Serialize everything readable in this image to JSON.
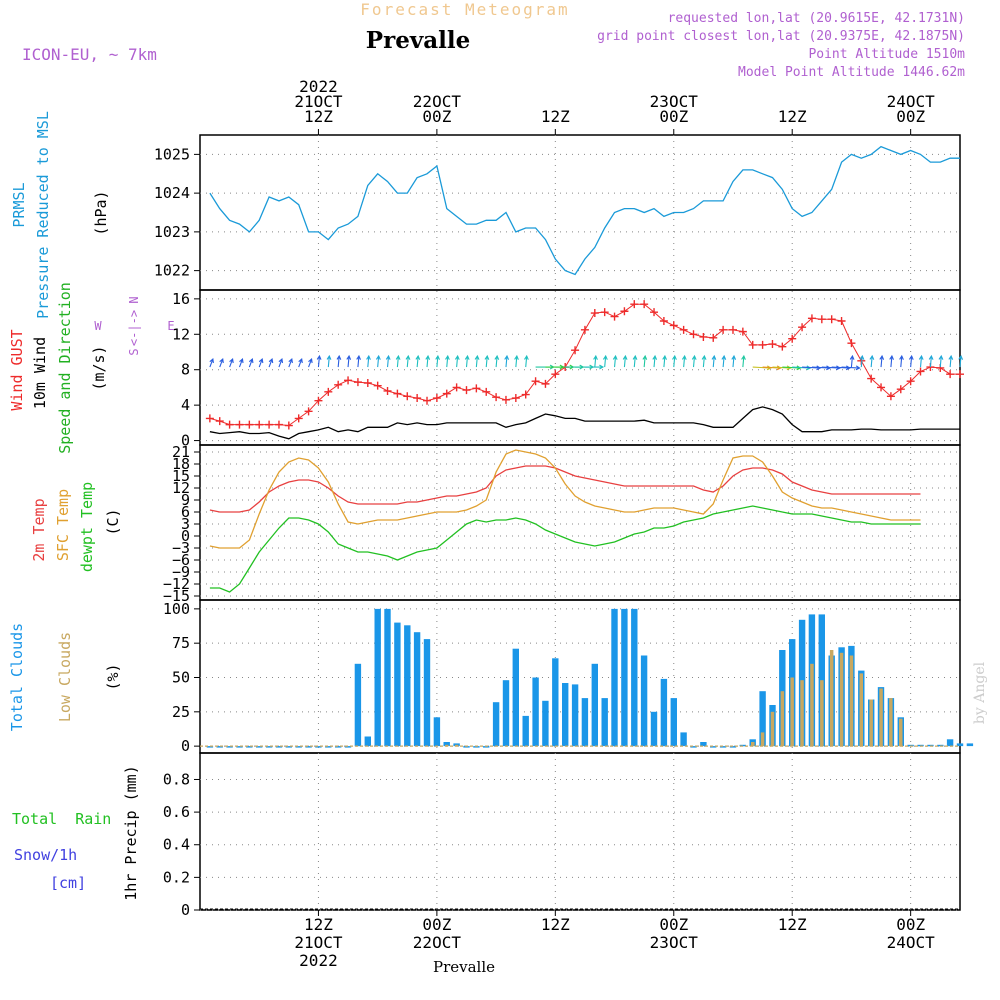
{
  "header": {
    "supertitle": "Forecast Meteogram",
    "title": "Prevalle",
    "model": "ICON-EU, ~ 7km",
    "requested": "requested lon,lat (20.9615E, 42.1731N)",
    "gridpoint": "grid point closest lon,lat (20.9375E, 42.1875N)",
    "altitude": "Point Altitude 1510m",
    "model_altitude": "Model Point Altitude 1446.62m",
    "footer": "Prevalle",
    "watermark": "by Angel"
  },
  "colors": {
    "pressure": "#1a9ad8",
    "gust": "#ee2b2b",
    "wind": "#000000",
    "dir": "#22b022",
    "t2m": "#e84040",
    "sfc": "#e0a030",
    "dew": "#22c022",
    "total_clouds": "#1a96e8",
    "low_clouds": "#c8a860",
    "model": "#b060d0",
    "snow": "#4040e0",
    "rain": "#22c022",
    "super": "#f0c890"
  },
  "time_axis": {
    "top_ticks": [
      {
        "h": 12,
        "line1": "2022",
        "line2": "21OCT",
        "line3": "12Z"
      },
      {
        "h": 24,
        "line1": "",
        "line2": "22OCT",
        "line3": "00Z"
      },
      {
        "h": 36,
        "line1": "",
        "line2": "",
        "line3": "12Z"
      },
      {
        "h": 48,
        "line1": "",
        "line2": "23OCT",
        "line3": "00Z"
      },
      {
        "h": 60,
        "line1": "",
        "line2": "",
        "line3": "12Z"
      },
      {
        "h": 72,
        "line1": "",
        "line2": "24OCT",
        "line3": "00Z"
      }
    ],
    "bottom_ticks": [
      {
        "h": 12,
        "line1": "12Z",
        "line2": "21OCT",
        "line3": "2022"
      },
      {
        "h": 24,
        "line1": "00Z",
        "line2": "22OCT",
        "line3": ""
      },
      {
        "h": 36,
        "line1": "12Z",
        "line2": "",
        "line3": ""
      },
      {
        "h": 48,
        "line1": "00Z",
        "line2": "23OCT",
        "line3": ""
      },
      {
        "h": 60,
        "line1": "12Z",
        "line2": "",
        "line3": ""
      },
      {
        "h": 72,
        "line1": "00Z",
        "line2": "24OCT",
        "line3": ""
      }
    ]
  },
  "panels": {
    "pressure": {
      "label1": "PRMSL",
      "label2": "Pressure Reduced to MSL",
      "unit": "(hPa)"
    },
    "wind": {
      "label_gust": "Wind GUST",
      "label_wind": "10m Wind",
      "label_dir": "Speed and Direction",
      "unit": "(m/s)",
      "compass_n": "N",
      "compass_s": "S",
      "compass_w": "W",
      "compass_e": "E",
      "compass_mid": "<-|->"
    },
    "temp": {
      "label_t2m": "2m Temp",
      "label_sfc": "SFC Temp",
      "label_dew": "dewpt Temp",
      "unit": "(C)"
    },
    "clouds": {
      "label_total": "Total Clouds",
      "label_low": "Low Clouds",
      "unit": "(%)"
    },
    "precip": {
      "label_rain": "Total  Rain",
      "label_snow": "Snow/1h",
      "label_cm": "[cm]",
      "label_axis": "1hr Precip (mm)"
    }
  },
  "chart_data": [
    {
      "type": "line",
      "name": "pressure",
      "x_start_hour": 1,
      "x_end_hour": 77,
      "ylim": [
        1021.5,
        1025.5
      ],
      "yticks": [
        1022,
        1023,
        1024,
        1025
      ],
      "series": [
        {
          "name": "PRMSL",
          "values": [
            1024.0,
            1023.6,
            1023.3,
            1023.2,
            1023.0,
            1023.3,
            1023.9,
            1023.8,
            1023.9,
            1023.7,
            1023.0,
            1023.0,
            1022.8,
            1023.1,
            1023.2,
            1023.4,
            1024.2,
            1024.5,
            1024.3,
            1024.0,
            1024.0,
            1024.4,
            1024.5,
            1024.7,
            1023.6,
            1023.4,
            1023.2,
            1023.2,
            1023.3,
            1023.3,
            1023.5,
            1023.0,
            1023.1,
            1023.1,
            1022.8,
            1022.3,
            1022.0,
            1021.9,
            1022.3,
            1022.6,
            1023.1,
            1023.5,
            1023.6,
            1023.6,
            1023.5,
            1023.6,
            1023.4,
            1023.5,
            1023.5,
            1023.6,
            1023.8,
            1023.8,
            1023.8,
            1024.3,
            1024.6,
            1024.6,
            1024.5,
            1024.4,
            1024.1,
            1023.6,
            1023.4,
            1023.5,
            1023.8,
            1024.1,
            1024.8,
            1025.0,
            1024.9,
            1025.0,
            1025.2,
            1025.1,
            1025.0,
            1025.1,
            1025.0,
            1024.8,
            1024.8,
            1024.9,
            1024.9
          ]
        }
      ]
    },
    {
      "type": "line",
      "name": "wind",
      "x_start_hour": 1,
      "x_end_hour": 77,
      "ylim": [
        -0.5,
        17
      ],
      "yticks": [
        0,
        4,
        8,
        12,
        16
      ],
      "series": [
        {
          "name": "Wind GUST",
          "values": [
            2.5,
            2.2,
            1.8,
            1.8,
            1.8,
            1.8,
            1.8,
            1.8,
            1.7,
            2.5,
            3.3,
            4.5,
            5.5,
            6.3,
            6.8,
            6.6,
            6.5,
            6.2,
            5.6,
            5.3,
            5.0,
            4.8,
            4.5,
            4.8,
            5.3,
            6.0,
            5.7,
            5.9,
            5.5,
            4.9,
            4.6,
            4.8,
            5.2,
            6.7,
            6.4,
            7.5,
            8.3,
            10.2,
            12.5,
            14.4,
            14.5,
            14.0,
            14.6,
            15.4,
            15.4,
            14.5,
            13.5,
            13.0,
            12.5,
            12.0,
            11.7,
            11.6,
            12.5,
            12.5,
            12.3,
            10.8,
            10.8,
            10.9,
            10.6,
            11.5,
            12.8,
            13.8,
            13.7,
            13.7,
            13.5,
            11.0,
            9.0,
            7.0,
            6.0,
            5.0,
            5.8,
            6.7,
            7.8,
            8.3,
            8.2,
            7.5,
            7.5
          ]
        },
        {
          "name": "10m Wind",
          "values": [
            1.0,
            0.8,
            0.9,
            1.0,
            0.8,
            0.8,
            0.9,
            0.5,
            0.2,
            0.8,
            1.0,
            1.2,
            1.5,
            1.0,
            1.2,
            1.0,
            1.5,
            1.5,
            1.5,
            2.0,
            1.8,
            2.0,
            1.8,
            1.8,
            2.0,
            2.0,
            2.0,
            2.0,
            2.0,
            2.0,
            1.5,
            1.8,
            2.0,
            2.5,
            3.0,
            2.8,
            2.5,
            2.5,
            2.2,
            2.2,
            2.2,
            2.2,
            2.2,
            2.2,
            2.3,
            2.0,
            2.0,
            2.0,
            2.0,
            2.0,
            1.8,
            1.5,
            1.5,
            1.5,
            2.5,
            3.5,
            3.8,
            3.5,
            3.0,
            1.8,
            1.0,
            1.0,
            1.0,
            1.2,
            1.2,
            1.2,
            1.3,
            1.3,
            1.2,
            1.2,
            1.2,
            1.2,
            1.3,
            1.3,
            1.3,
            1.3,
            1.3
          ]
        }
      ]
    },
    {
      "type": "line",
      "name": "temperature",
      "x_start_hour": 1,
      "x_end_hour": 77,
      "ylim": [
        -16,
        22
      ],
      "yticks": [
        -15,
        -12,
        -9,
        -6,
        -3,
        0,
        3,
        6,
        9,
        12,
        15,
        18,
        21
      ],
      "series": [
        {
          "name": "2m Temp",
          "values": [
            6.5,
            6.0,
            6.0,
            6.0,
            6.5,
            8.5,
            11.0,
            12.5,
            13.5,
            14.0,
            14.0,
            13.5,
            12.0,
            10.0,
            8.5,
            8.0,
            8.0,
            8.0,
            8.0,
            8.0,
            8.5,
            8.5,
            9.0,
            9.5,
            10.0,
            10.0,
            10.5,
            11.0,
            12.0,
            15.0,
            16.5,
            17.0,
            17.5,
            17.5,
            17.5,
            17.0,
            16.0,
            15.0,
            14.5,
            14.0,
            13.5,
            13.0,
            12.5,
            12.5,
            12.5,
            12.5,
            12.5,
            12.5,
            12.5,
            12.5,
            11.5,
            11.0,
            12.5,
            15.0,
            16.5,
            17.0,
            17.0,
            16.5,
            15.5,
            13.5,
            12.5,
            11.5,
            11.0,
            10.5,
            10.5,
            10.5,
            10.5,
            10.5,
            10.5,
            10.5,
            10.5,
            10.5,
            10.5
          ]
        },
        {
          "name": "SFC Temp",
          "values": [
            -2.5,
            -3.0,
            -3.0,
            -3.0,
            -1.0,
            5.5,
            11.5,
            16.0,
            18.5,
            19.5,
            19.0,
            17.0,
            13.5,
            8.0,
            3.5,
            3.0,
            3.5,
            4.0,
            4.0,
            4.0,
            4.5,
            5.0,
            5.5,
            6.0,
            6.0,
            6.0,
            6.5,
            7.5,
            9.0,
            16.0,
            20.5,
            21.5,
            21.0,
            20.5,
            19.5,
            17.0,
            13.0,
            10.0,
            8.5,
            7.5,
            7.0,
            6.5,
            6.0,
            6.0,
            6.5,
            7.0,
            7.0,
            7.0,
            6.5,
            6.0,
            5.5,
            8.0,
            14.0,
            19.5,
            20.0,
            20.0,
            18.5,
            15.0,
            11.0,
            9.5,
            8.5,
            7.5,
            7.0,
            7.0,
            6.5,
            6.0,
            5.5,
            5.0,
            4.5,
            4.0,
            4.0,
            4.0,
            4.0
          ]
        },
        {
          "name": "dewpt Temp",
          "values": [
            -13.0,
            -13.0,
            -14.0,
            -12.0,
            -8.0,
            -4.0,
            -1.0,
            2.0,
            4.5,
            4.5,
            4.0,
            3.0,
            1.0,
            -2.0,
            -3.0,
            -4.0,
            -4.0,
            -4.5,
            -5.0,
            -6.0,
            -5.0,
            -4.0,
            -3.5,
            -3.0,
            -1.0,
            1.0,
            3.0,
            4.0,
            3.5,
            4.0,
            4.0,
            4.5,
            4.0,
            3.0,
            1.5,
            0.5,
            -0.5,
            -1.5,
            -2.0,
            -2.5,
            -2.0,
            -1.5,
            -0.5,
            0.5,
            1.0,
            2.0,
            2.0,
            2.5,
            3.5,
            4.0,
            4.5,
            5.5,
            6.0,
            6.5,
            7.0,
            7.5,
            7.0,
            6.5,
            6.0,
            5.5,
            5.5,
            5.5,
            5.0,
            4.5,
            4.0,
            3.5,
            3.5,
            3.0,
            3.0,
            3.0,
            3.0,
            3.0,
            3.0
          ]
        }
      ]
    },
    {
      "type": "bar",
      "name": "clouds",
      "x_start_hour": 1,
      "x_end_hour": 77,
      "ylim": [
        -5,
        105
      ],
      "yticks": [
        0,
        25,
        50,
        75,
        100
      ],
      "series": [
        {
          "name": "Total Clouds",
          "values": [
            0,
            0,
            0,
            0,
            0,
            0,
            0,
            0,
            0,
            0,
            0,
            0,
            0,
            0,
            0,
            60,
            7,
            100,
            100,
            90,
            88,
            83,
            78,
            21,
            3,
            2,
            0,
            0,
            0,
            32,
            48,
            71,
            22,
            50,
            33,
            64,
            46,
            45,
            35,
            60,
            35,
            100,
            100,
            100,
            66,
            25,
            49,
            35,
            10,
            0,
            3,
            0,
            0,
            0,
            1,
            5,
            40,
            30,
            70,
            78,
            92,
            96,
            96,
            66,
            72,
            73,
            55,
            34,
            43,
            35,
            21,
            1,
            1,
            1,
            1,
            5,
            2,
            2
          ]
        },
        {
          "name": "Low Clouds",
          "values": [
            0,
            0,
            0,
            0,
            0,
            0,
            0,
            0,
            0,
            0,
            0,
            0,
            0,
            0,
            0,
            0,
            0,
            0,
            0,
            0,
            0,
            0,
            0,
            0,
            1,
            1,
            0,
            0,
            0,
            0,
            0,
            0,
            0,
            0,
            0,
            0,
            0,
            0,
            0,
            0,
            0,
            0,
            0,
            0,
            0,
            0,
            0,
            0,
            0,
            0,
            0,
            0,
            0,
            0,
            0,
            3,
            10,
            25,
            40,
            50,
            48,
            60,
            48,
            70,
            68,
            66,
            53,
            34,
            42,
            35,
            20,
            0,
            0,
            0,
            0,
            0,
            0,
            0
          ]
        }
      ]
    },
    {
      "type": "bar",
      "name": "precip",
      "x_start_hour": 1,
      "x_end_hour": 77,
      "ylim": [
        0,
        0.95
      ],
      "yticks": [
        0,
        0.2,
        0.4,
        0.6,
        0.8
      ],
      "ytick_labels": [
        "0",
        "0.2",
        "0.4",
        "0.6",
        "0.8"
      ],
      "series": [
        {
          "name": "Total Rain",
          "values": []
        }
      ]
    }
  ]
}
